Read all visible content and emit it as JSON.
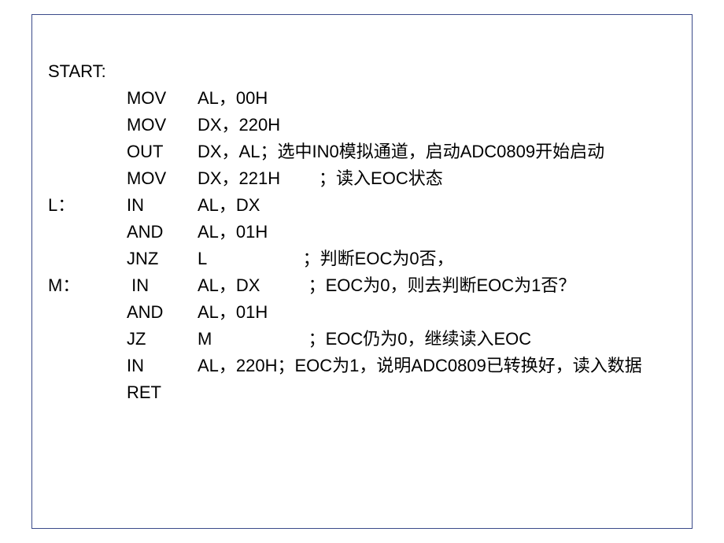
{
  "fontsize": 22,
  "line_height": 34,
  "text_color": "#000000",
  "border_color": "#3b4a8a",
  "lines": [
    {
      "label": "START:",
      "mnemonic": "",
      "args": ""
    },
    {
      "label": "",
      "mnemonic": "MOV",
      "args": "AL，00H"
    },
    {
      "label": "",
      "mnemonic": "MOV",
      "args": "DX，220H"
    },
    {
      "label": "",
      "mnemonic": "OUT",
      "args": "DX，AL；选中IN0模拟通道，启动ADC0809开始启动"
    },
    {
      "label": "",
      "mnemonic": "MOV",
      "args": "DX，221H        ；读入EOC状态"
    },
    {
      "label": "L：",
      "mnemonic": "IN",
      "args": "AL，DX"
    },
    {
      "label": "",
      "mnemonic": "AND",
      "args": "AL，01H"
    },
    {
      "label": "",
      "mnemonic": "JNZ",
      "args": "L                    ；判断EOC为0否，"
    },
    {
      "label": "M：",
      "mnemonic": " IN",
      "args": "AL，DX          ；EOC为0，则去判断EOC为1否？"
    },
    {
      "label": "",
      "mnemonic": "AND",
      "args": "AL，01H"
    },
    {
      "label": "",
      "mnemonic": "JZ",
      "args": "M                    ；EOC仍为0，继续读入EOC"
    },
    {
      "label": "",
      "mnemonic": "IN",
      "args": "AL，220H；EOC为1，说明ADC0809已转换好，读入数据"
    },
    {
      "label": "",
      "mnemonic": "RET",
      "args": ""
    }
  ]
}
